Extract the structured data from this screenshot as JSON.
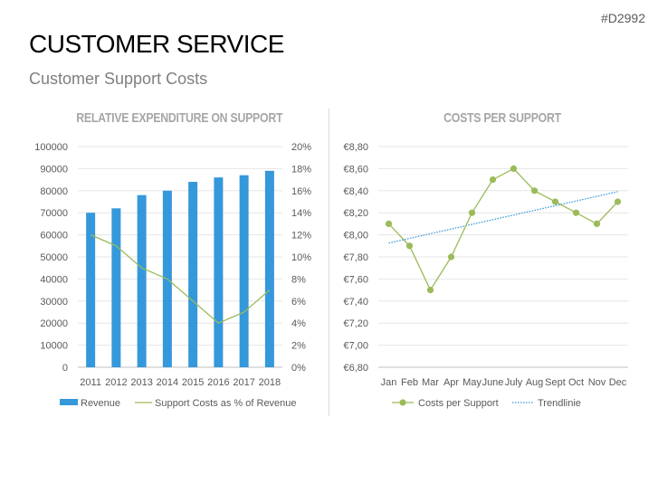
{
  "slide": {
    "code": "#D2992",
    "title": "CUSTOMER SERVICE",
    "subtitle": "Customer Support Costs"
  },
  "chart_data": [
    {
      "type": "bar",
      "title": "Relative expenditure on support",
      "categories": [
        "2011",
        "2012",
        "2013",
        "2014",
        "2015",
        "2016",
        "2017",
        "2018"
      ],
      "series": [
        {
          "name": "Revenue",
          "type": "bar",
          "axis": "left",
          "color": "#3498db",
          "values": [
            70000,
            72000,
            78000,
            80000,
            84000,
            86000,
            87000,
            89000
          ]
        },
        {
          "name": "Support Costs as % of Revenue",
          "type": "line",
          "axis": "right",
          "color": "#9bbb59",
          "values": [
            12,
            11,
            9,
            8,
            6,
            4,
            5,
            7
          ]
        }
      ],
      "ylim": [
        0,
        100000
      ],
      "yticks": [
        "0",
        "10000",
        "20000",
        "30000",
        "40000",
        "50000",
        "60000",
        "70000",
        "80000",
        "90000",
        "100000"
      ],
      "y2lim": [
        0,
        20
      ],
      "y2ticks": [
        "0%",
        "2%",
        "4%",
        "6%",
        "8%",
        "10%",
        "12%",
        "14%",
        "16%",
        "18%",
        "20%"
      ],
      "grid": true,
      "legend": "bottom"
    },
    {
      "type": "line",
      "title": "Costs per support",
      "categories": [
        "Jan",
        "Feb",
        "Mar",
        "Apr",
        "May",
        "June",
        "July",
        "Aug",
        "Sept",
        "Oct",
        "Nov",
        "Dec"
      ],
      "series": [
        {
          "name": "Costs per Support",
          "color": "#9bbb59",
          "values": [
            8.1,
            7.9,
            7.5,
            7.8,
            8.2,
            8.5,
            8.6,
            8.4,
            8.3,
            8.2,
            8.1,
            8.3
          ]
        },
        {
          "name": "Trendlinie",
          "color": "#3498db",
          "style": "dotted",
          "trend": "linear"
        }
      ],
      "ylim": [
        6.8,
        8.8
      ],
      "yticks": [
        "€6,80",
        "€7,00",
        "€7,20",
        "€7,40",
        "€7,60",
        "€7,80",
        "€8,00",
        "€8,20",
        "€8,40",
        "€8,60",
        "€8,80"
      ],
      "grid": true,
      "legend": "bottom"
    }
  ]
}
